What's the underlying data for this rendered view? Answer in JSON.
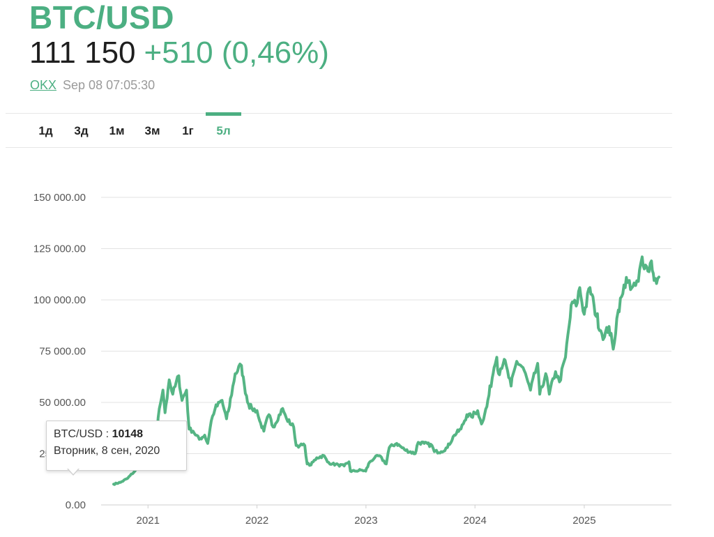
{
  "header": {
    "pair": "BTC/USD",
    "price": "111 150",
    "change": "+510 (0,46%)",
    "source": "OKX",
    "timestamp": "Sep 08 07:05:30"
  },
  "tabs": [
    {
      "label": "1д",
      "active": false
    },
    {
      "label": "3д",
      "active": false
    },
    {
      "label": "1м",
      "active": false
    },
    {
      "label": "3м",
      "active": false
    },
    {
      "label": "1г",
      "active": false
    },
    {
      "label": "5л",
      "active": true
    }
  ],
  "tooltip": {
    "series": "BTC/USD : ",
    "value": "10148",
    "date": "Вторник, 8 сен, 2020"
  },
  "colors": {
    "accent": "#4caf82",
    "line": "#55b584",
    "grid": "#e3e3e3",
    "axis_text": "#555555"
  },
  "chart_data": {
    "type": "line",
    "title": "BTC/USD",
    "xlabel": "",
    "ylabel": "",
    "ylim": [
      0,
      150000
    ],
    "xlim": [
      "2020-09-08",
      "2025-09-08"
    ],
    "yticks": [
      0,
      25000,
      50000,
      75000,
      100000,
      125000,
      150000
    ],
    "ytick_labels": [
      "0.00",
      "25 000.00",
      "50 000.00",
      "75 000.00",
      "100 000.00",
      "125 000.00",
      "150 000.00"
    ],
    "xtick_labels": [
      "2021",
      "2022",
      "2023",
      "2024",
      "2025"
    ],
    "xtick_dates": [
      "2021-01-01",
      "2022-01-01",
      "2023-01-01",
      "2024-01-01",
      "2025-01-01"
    ],
    "grid": true,
    "series": [
      {
        "name": "BTC/USD",
        "x": [
          "2020-09-08",
          "2020-10-01",
          "2020-10-25",
          "2020-11-15",
          "2020-12-01",
          "2020-12-20",
          "2021-01-03",
          "2021-01-10",
          "2021-01-20",
          "2021-02-01",
          "2021-02-08",
          "2021-02-20",
          "2021-02-27",
          "2021-03-13",
          "2021-03-25",
          "2021-04-14",
          "2021-04-25",
          "2021-05-10",
          "2021-05-19",
          "2021-06-01",
          "2021-06-22",
          "2021-07-10",
          "2021-07-20",
          "2021-08-01",
          "2021-08-14",
          "2021-09-06",
          "2021-09-21",
          "2021-10-01",
          "2021-10-20",
          "2021-11-10",
          "2021-11-20",
          "2021-12-04",
          "2021-12-15",
          "2022-01-01",
          "2022-01-10",
          "2022-01-24",
          "2022-02-10",
          "2022-02-24",
          "2022-03-28",
          "2022-04-10",
          "2022-05-04",
          "2022-05-12",
          "2022-05-25",
          "2022-06-10",
          "2022-06-18",
          "2022-07-01",
          "2022-07-20",
          "2022-08-14",
          "2022-08-25",
          "2022-09-10",
          "2022-10-01",
          "2022-10-20",
          "2022-11-05",
          "2022-11-10",
          "2022-11-25",
          "2022-12-15",
          "2022-12-31",
          "2023-01-14",
          "2023-01-30",
          "2023-02-15",
          "2023-03-10",
          "2023-03-20",
          "2023-04-14",
          "2023-05-10",
          "2023-06-15",
          "2023-06-25",
          "2023-07-15",
          "2023-08-10",
          "2023-08-18",
          "2023-09-10",
          "2023-10-01",
          "2023-10-24",
          "2023-11-15",
          "2023-12-05",
          "2023-12-20",
          "2024-01-10",
          "2024-01-23",
          "2024-02-10",
          "2024-02-28",
          "2024-03-05",
          "2024-03-14",
          "2024-03-20",
          "2024-04-08",
          "2024-05-01",
          "2024-05-20",
          "2024-06-10",
          "2024-07-05",
          "2024-07-29",
          "2024-08-05",
          "2024-08-25",
          "2024-09-06",
          "2024-09-27",
          "2024-10-10",
          "2024-10-30",
          "2024-11-12",
          "2024-11-22",
          "2024-12-05",
          "2024-12-17",
          "2025-01-01",
          "2025-01-20",
          "2025-02-03",
          "2025-02-25",
          "2025-03-10",
          "2025-03-25",
          "2025-04-08",
          "2025-04-25",
          "2025-05-10",
          "2025-05-22",
          "2025-06-05",
          "2025-06-22",
          "2025-07-01",
          "2025-07-14",
          "2025-07-25",
          "2025-08-02",
          "2025-08-14",
          "2025-08-20",
          "2025-08-31",
          "2025-09-08"
        ],
        "y": [
          10148,
          11000,
          13000,
          16000,
          19000,
          23000,
          32000,
          40000,
          34000,
          36000,
          47000,
          56000,
          45000,
          61000,
          54000,
          63000,
          51000,
          56000,
          37000,
          36000,
          32000,
          34000,
          30000,
          41000,
          47000,
          51000,
          42000,
          48000,
          64000,
          68000,
          58000,
          49000,
          47000,
          46000,
          41000,
          36000,
          44000,
          38000,
          47000,
          42000,
          38000,
          29000,
          29000,
          29000,
          20000,
          19500,
          23000,
          24000,
          21000,
          20000,
          19500,
          19000,
          21000,
          16500,
          16500,
          17000,
          16500,
          21000,
          23000,
          24000,
          20000,
          28000,
          30000,
          27000,
          25000,
          30500,
          30000,
          29000,
          26000,
          26000,
          28000,
          34000,
          37000,
          44000,
          43000,
          46000,
          39500,
          48000,
          62000,
          67000,
          72000,
          64000,
          71000,
          58000,
          70000,
          67000,
          56000,
          69000,
          54000,
          64000,
          54000,
          65000,
          60000,
          72000,
          88000,
          99000,
          97000,
          106000,
          93000,
          106000,
          97000,
          85000,
          82000,
          87000,
          76000,
          95000,
          103000,
          111000,
          105000,
          107000,
          109000,
          121000,
          117000,
          114000,
          119000,
          113000,
          108000,
          111150
        ]
      }
    ]
  }
}
